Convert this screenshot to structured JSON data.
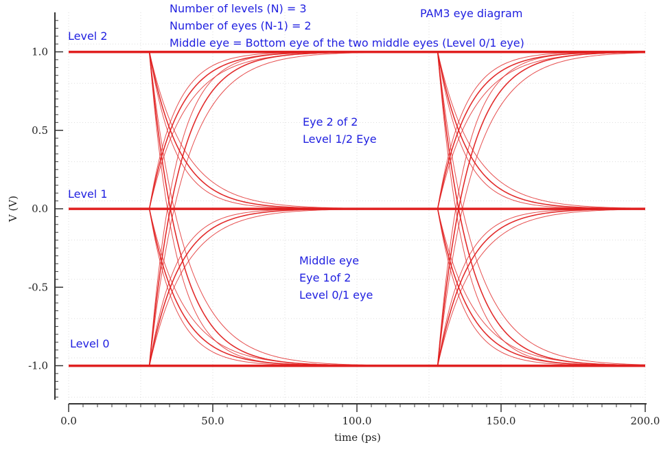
{
  "chart_data": {
    "type": "line",
    "title": "PAM3 eye diagram",
    "xlabel": "time (ps)",
    "ylabel": "V (V)",
    "xlim": [
      0,
      200
    ],
    "ylim": [
      -1.2,
      1.2
    ],
    "x_ticks": [
      0,
      50,
      100,
      150,
      200
    ],
    "x_tick_labels": [
      "0.0",
      "50.0",
      "100.0",
      "150.0",
      "200.0"
    ],
    "y_ticks": [
      1.0,
      0.5,
      0.0,
      -0.5,
      -1.0
    ],
    "y_tick_labels": [
      "1.0",
      "0.5",
      "0.0",
      "-0.5",
      "-1.0"
    ],
    "grid": true,
    "trace_color": "#e02020",
    "levels": [
      {
        "name": "Level 0",
        "value": -1.0
      },
      {
        "name": "Level 1",
        "value": 0.0
      },
      {
        "name": "Level 2",
        "value": 1.0
      }
    ],
    "transition_times_ps": [
      28,
      128
    ],
    "unit_interval_ps": 100,
    "annotations": {
      "header": [
        "Number of levels (N) = 3",
        "Number of eyes (N-1) = 2",
        "Middle eye = Bottom eye of the two middle eyes (Level 0/1 eye)"
      ],
      "level_labels": [
        "Level 2",
        "Level 1",
        "Level 0"
      ],
      "upper_eye": [
        "Eye 2 of 2",
        "Level 1/2 Eye"
      ],
      "lower_eye": [
        "Middle eye",
        "Eye 1of 2",
        "Level 0/1 eye"
      ]
    }
  }
}
